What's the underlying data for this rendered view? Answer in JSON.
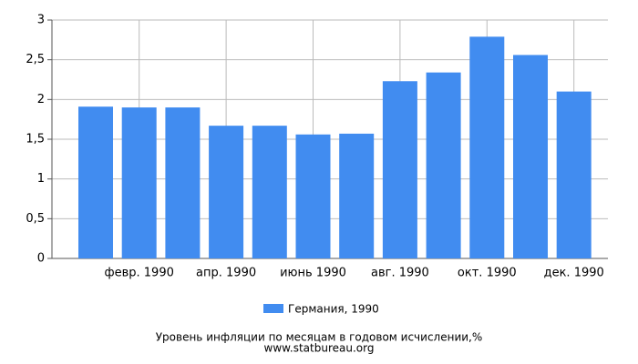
{
  "chart_data": {
    "type": "bar",
    "title": "Уровень инфляции по месяцам в годовом исчислении,%",
    "subtitle": "www.statbureau.org",
    "categories": [
      null,
      "февр. 1990",
      null,
      "апр. 1990",
      null,
      "июнь 1990",
      null,
      "авг. 1990",
      null,
      "окт. 1990",
      null,
      "дек. 1990"
    ],
    "series": [
      {
        "name": "Германия, 1990",
        "color": "#418cf0",
        "values": [
          1.91,
          1.9,
          1.9,
          1.67,
          1.67,
          1.56,
          1.57,
          2.23,
          2.34,
          2.79,
          2.56,
          2.1
        ]
      }
    ],
    "ylim": [
      0,
      3
    ],
    "yticks": [
      0,
      {
        "value": 0.5,
        "label": "0,5"
      },
      1,
      {
        "value": 1.5,
        "label": "1,5"
      },
      2,
      {
        "value": 2.5,
        "label": "2,5"
      },
      3
    ],
    "grid": true
  }
}
